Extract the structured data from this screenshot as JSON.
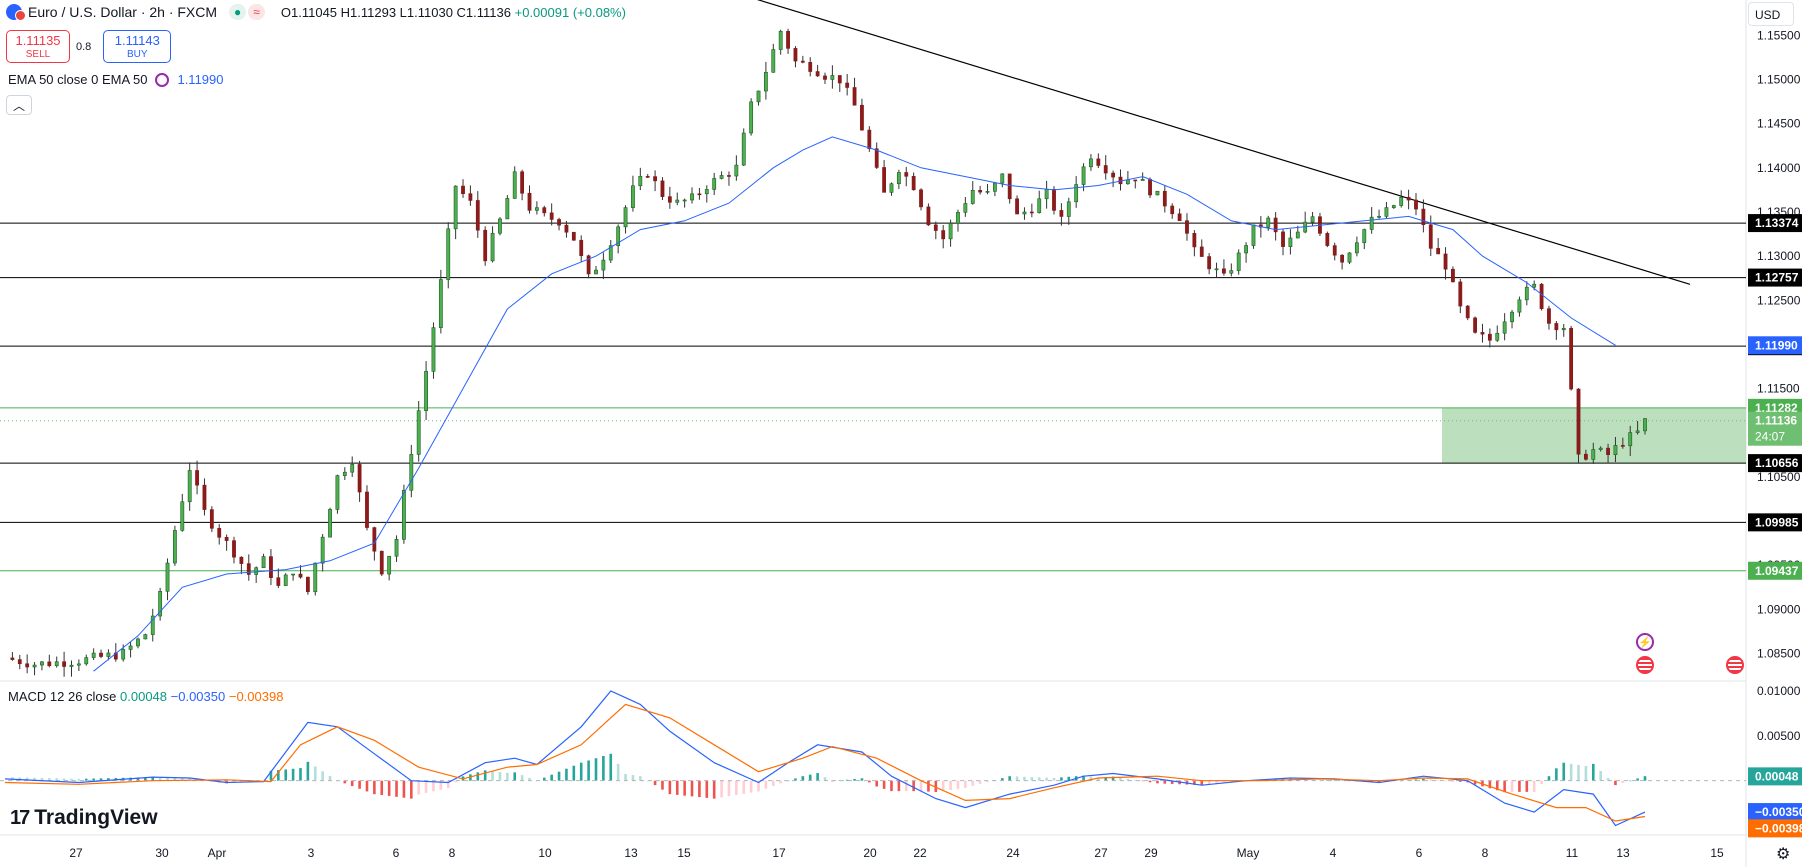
{
  "header": {
    "symbol": "Euro / U.S. Dollar · 2h · FXCM",
    "ohlc": "O1.11045 H1.11293 L1.11030 C1.11136",
    "change": "+0.00091 (+0.08%)"
  },
  "trade": {
    "sell_price": "1.11135",
    "sell_label": "SELL",
    "spread": "0.8",
    "buy_price": "1.11143",
    "buy_label": "BUY"
  },
  "ema_legend": {
    "label": "EMA 50 close 0 EMA 50",
    "value": "1.11990"
  },
  "macd_legend": {
    "label": "MACD 12 26 close",
    "hist": "0.00048",
    "macd": "−0.00350",
    "signal": "−0.00398"
  },
  "brand": {
    "name": "TradingView"
  },
  "currency_button": "USD",
  "colors": {
    "up": "#089981",
    "down": "#f23645",
    "ema": "#2962ff",
    "signal": "#ff6d00",
    "zone": "#9fd6a6"
  },
  "icons": [
    "chevron-up-icon",
    "gear-icon",
    "lightning-event-icon",
    "us-flag-event-icon"
  ],
  "chart_data": [
    {
      "type": "candlestick",
      "title": "Euro / U.S. Dollar · 2h · FXCM",
      "ylim": [
        1.082,
        1.159
      ],
      "y_ticks": [
        "1.15500",
        "1.15000",
        "1.14500",
        "1.14000",
        "1.13500",
        "1.13000",
        "1.12500",
        "1.11500",
        "1.10500",
        "1.09500",
        "1.09000",
        "1.08500"
      ],
      "x_ticks": [
        "27",
        "30",
        "Apr",
        "3",
        "6",
        "8",
        "10",
        "13",
        "15",
        "17",
        "20",
        "22",
        "24",
        "27",
        "29",
        "May",
        "4",
        "6",
        "8",
        "11",
        "13",
        "15"
      ],
      "horizontal_levels": [
        {
          "price": 1.13374,
          "label": "1.13374",
          "color": "#000000"
        },
        {
          "price": 1.12757,
          "label": "1.12757",
          "color": "#000000"
        },
        {
          "price": 1.1198,
          "label": "1.11980",
          "color": "#000000"
        },
        {
          "price": 1.11282,
          "label": "1.11282",
          "color": "#4caf50"
        },
        {
          "price": 1.10656,
          "label": "1.10656",
          "color": "#000000"
        },
        {
          "price": 1.09985,
          "label": "1.09985",
          "color": "#000000"
        },
        {
          "price": 1.09437,
          "label": "1.09437",
          "color": "#4caf50"
        }
      ],
      "price_tags": [
        {
          "price": 1.1199,
          "label": "1.11990",
          "color": "#2962ff"
        },
        {
          "price": 1.11136,
          "label": "1.11136",
          "countdown": "24:07",
          "color": "#6fbf73"
        }
      ],
      "last_price": 1.11136,
      "trendline": {
        "from_price": 1.16,
        "to_price": 1.1268
      },
      "support_zone": {
        "low": 1.10656,
        "high": 1.11282
      },
      "ema_period": 50,
      "ema_last": 1.1199,
      "price_path": [
        [
          0,
          1.0845
        ],
        [
          4,
          1.0838
        ],
        [
          10,
          1.0842
        ],
        [
          16,
          1.085
        ],
        [
          19,
          1.0872
        ],
        [
          21,
          1.0915
        ],
        [
          23,
          1.099
        ],
        [
          25,
          1.106
        ],
        [
          27,
          1.101
        ],
        [
          29,
          1.0985
        ],
        [
          31,
          1.0965
        ],
        [
          33,
          1.094
        ],
        [
          35,
          1.0955
        ],
        [
          37,
          1.0925
        ],
        [
          39,
          1.0945
        ],
        [
          41,
          1.092
        ],
        [
          43,
          1.0985
        ],
        [
          45,
          1.105
        ],
        [
          47,
          1.107
        ],
        [
          49,
          1.099
        ],
        [
          51,
          1.0945
        ],
        [
          53,
          1.098
        ],
        [
          55,
          1.108
        ],
        [
          57,
          1.117
        ],
        [
          59,
          1.127
        ],
        [
          61,
          1.138
        ],
        [
          63,
          1.136
        ],
        [
          65,
          1.13
        ],
        [
          67,
          1.134
        ],
        [
          69,
          1.139
        ],
        [
          71,
          1.1355
        ],
        [
          73,
          1.1345
        ],
        [
          75,
          1.134
        ],
        [
          77,
          1.132
        ],
        [
          79,
          1.1275
        ],
        [
          81,
          1.13
        ],
        [
          83,
          1.1335
        ],
        [
          85,
          1.1375
        ],
        [
          87,
          1.1395
        ],
        [
          89,
          1.137
        ],
        [
          91,
          1.136
        ],
        [
          93,
          1.1365
        ],
        [
          95,
          1.138
        ],
        [
          97,
          1.139
        ],
        [
          99,
          1.14
        ],
        [
          101,
          1.147
        ],
        [
          103,
          1.151
        ],
        [
          105,
          1.1555
        ],
        [
          107,
          1.152
        ],
        [
          109,
          1.1515
        ],
        [
          111,
          1.1505
        ],
        [
          113,
          1.15
        ],
        [
          115,
          1.147
        ],
        [
          117,
          1.142
        ],
        [
          119,
          1.137
        ],
        [
          121,
          1.14
        ],
        [
          123,
          1.138
        ],
        [
          125,
          1.134
        ],
        [
          127,
          1.132
        ],
        [
          129,
          1.135
        ],
        [
          131,
          1.1375
        ],
        [
          133,
          1.137
        ],
        [
          135,
          1.139
        ],
        [
          137,
          1.1345
        ],
        [
          139,
          1.1355
        ],
        [
          141,
          1.137
        ],
        [
          143,
          1.134
        ],
        [
          145,
          1.1385
        ],
        [
          147,
          1.1415
        ],
        [
          149,
          1.14
        ],
        [
          151,
          1.1385
        ],
        [
          153,
          1.139
        ],
        [
          155,
          1.1375
        ],
        [
          157,
          1.136
        ],
        [
          159,
          1.1345
        ],
        [
          161,
          1.1305
        ],
        [
          163,
          1.129
        ],
        [
          165,
          1.1275
        ],
        [
          167,
          1.13
        ],
        [
          169,
          1.133
        ],
        [
          171,
          1.134
        ],
        [
          173,
          1.131
        ],
        [
          175,
          1.1325
        ],
        [
          177,
          1.1345
        ],
        [
          179,
          1.1315
        ],
        [
          181,
          1.1295
        ],
        [
          183,
          1.132
        ],
        [
          185,
          1.134
        ],
        [
          187,
          1.135
        ],
        [
          189,
          1.1365
        ],
        [
          191,
          1.1355
        ],
        [
          193,
          1.131
        ],
        [
          195,
          1.129
        ],
        [
          197,
          1.124
        ],
        [
          199,
          1.121
        ],
        [
          201,
          1.1205
        ],
        [
          203,
          1.123
        ],
        [
          205,
          1.1255
        ],
        [
          207,
          1.1265
        ],
        [
          209,
          1.1225
        ],
        [
          211,
          1.122
        ],
        [
          213,
          1.107
        ],
        [
          215,
          1.108
        ],
        [
          217,
          1.1075
        ],
        [
          219,
          1.109
        ],
        [
          221,
          1.11
        ],
        [
          222,
          1.1113
        ]
      ],
      "ema_path": [
        [
          12,
          1.083
        ],
        [
          18,
          1.087
        ],
        [
          24,
          1.0925
        ],
        [
          30,
          1.094
        ],
        [
          38,
          1.0945
        ],
        [
          44,
          1.0955
        ],
        [
          50,
          1.0975
        ],
        [
          56,
          1.106
        ],
        [
          62,
          1.115
        ],
        [
          68,
          1.124
        ],
        [
          74,
          1.128
        ],
        [
          80,
          1.13
        ],
        [
          86,
          1.133
        ],
        [
          92,
          1.134
        ],
        [
          98,
          1.136
        ],
        [
          104,
          1.14
        ],
        [
          108,
          1.142
        ],
        [
          112,
          1.1435
        ],
        [
          118,
          1.142
        ],
        [
          124,
          1.14
        ],
        [
          130,
          1.139
        ],
        [
          136,
          1.138
        ],
        [
          142,
          1.1375
        ],
        [
          148,
          1.138
        ],
        [
          154,
          1.139
        ],
        [
          160,
          1.137
        ],
        [
          166,
          1.134
        ],
        [
          172,
          1.133
        ],
        [
          178,
          1.1335
        ],
        [
          184,
          1.134
        ],
        [
          190,
          1.1345
        ],
        [
          196,
          1.133
        ],
        [
          200,
          1.13
        ],
        [
          206,
          1.127
        ],
        [
          212,
          1.123
        ],
        [
          218,
          1.1199
        ]
      ]
    },
    {
      "type": "line",
      "title": "MACD 12 26 close",
      "ylim": [
        -0.0055,
        0.011
      ],
      "y_ticks": [
        "0.01000",
        "0.00500"
      ],
      "hist_last": 0.00048,
      "macd_last": -0.0035,
      "signal_last": -0.00398,
      "macd_path": [
        [
          0,
          0.0002
        ],
        [
          10,
          -0.0002
        ],
        [
          20,
          0.0004
        ],
        [
          25,
          0.0003
        ],
        [
          30,
          -0.0002
        ],
        [
          35,
          -0.0001
        ],
        [
          41,
          0.0065
        ],
        [
          45,
          0.006
        ],
        [
          50,
          0.003
        ],
        [
          55,
          0.0
        ],
        [
          60,
          -0.0002
        ],
        [
          65,
          0.002
        ],
        [
          69,
          0.0025
        ],
        [
          72,
          0.0018
        ],
        [
          78,
          0.006
        ],
        [
          82,
          0.01
        ],
        [
          86,
          0.0085
        ],
        [
          90,
          0.0055
        ],
        [
          96,
          0.002
        ],
        [
          102,
          -0.0002
        ],
        [
          106,
          0.002
        ],
        [
          110,
          0.004
        ],
        [
          116,
          0.0032
        ],
        [
          120,
          0.0005
        ],
        [
          126,
          -0.002
        ],
        [
          130,
          -0.003
        ],
        [
          136,
          -0.0015
        ],
        [
          142,
          -0.0005
        ],
        [
          146,
          0.0005
        ],
        [
          150,
          0.0008
        ],
        [
          156,
          0.0002
        ],
        [
          162,
          -0.0005
        ],
        [
          168,
          0.0
        ],
        [
          174,
          0.0003
        ],
        [
          180,
          0.0002
        ],
        [
          186,
          -0.0002
        ],
        [
          192,
          0.0005
        ],
        [
          198,
          0.0
        ],
        [
          203,
          -0.0025
        ],
        [
          207,
          -0.0035
        ],
        [
          211,
          -0.001
        ],
        [
          215,
          -0.0015
        ],
        [
          218,
          -0.005
        ],
        [
          222,
          -0.0035
        ]
      ],
      "signal_path": [
        [
          0,
          -0.0002
        ],
        [
          10,
          -0.0004
        ],
        [
          20,
          0.0
        ],
        [
          30,
          0.0001
        ],
        [
          36,
          -0.0001
        ],
        [
          40,
          0.004
        ],
        [
          45,
          0.006
        ],
        [
          50,
          0.0045
        ],
        [
          56,
          0.0015
        ],
        [
          62,
          0.0002
        ],
        [
          68,
          0.0015
        ],
        [
          72,
          0.0018
        ],
        [
          78,
          0.004
        ],
        [
          84,
          0.0085
        ],
        [
          90,
          0.007
        ],
        [
          96,
          0.004
        ],
        [
          102,
          0.001
        ],
        [
          108,
          0.0025
        ],
        [
          112,
          0.0038
        ],
        [
          118,
          0.0025
        ],
        [
          124,
          0.0
        ],
        [
          130,
          -0.0022
        ],
        [
          136,
          -0.002
        ],
        [
          142,
          -0.0008
        ],
        [
          148,
          0.0003
        ],
        [
          156,
          0.0005
        ],
        [
          162,
          0.0
        ],
        [
          170,
          0.0
        ],
        [
          178,
          0.0002
        ],
        [
          186,
          0.0
        ],
        [
          192,
          0.0003
        ],
        [
          198,
          0.0002
        ],
        [
          204,
          -0.0015
        ],
        [
          210,
          -0.003
        ],
        [
          214,
          -0.003
        ],
        [
          218,
          -0.0045
        ],
        [
          222,
          -0.004
        ]
      ]
    }
  ]
}
